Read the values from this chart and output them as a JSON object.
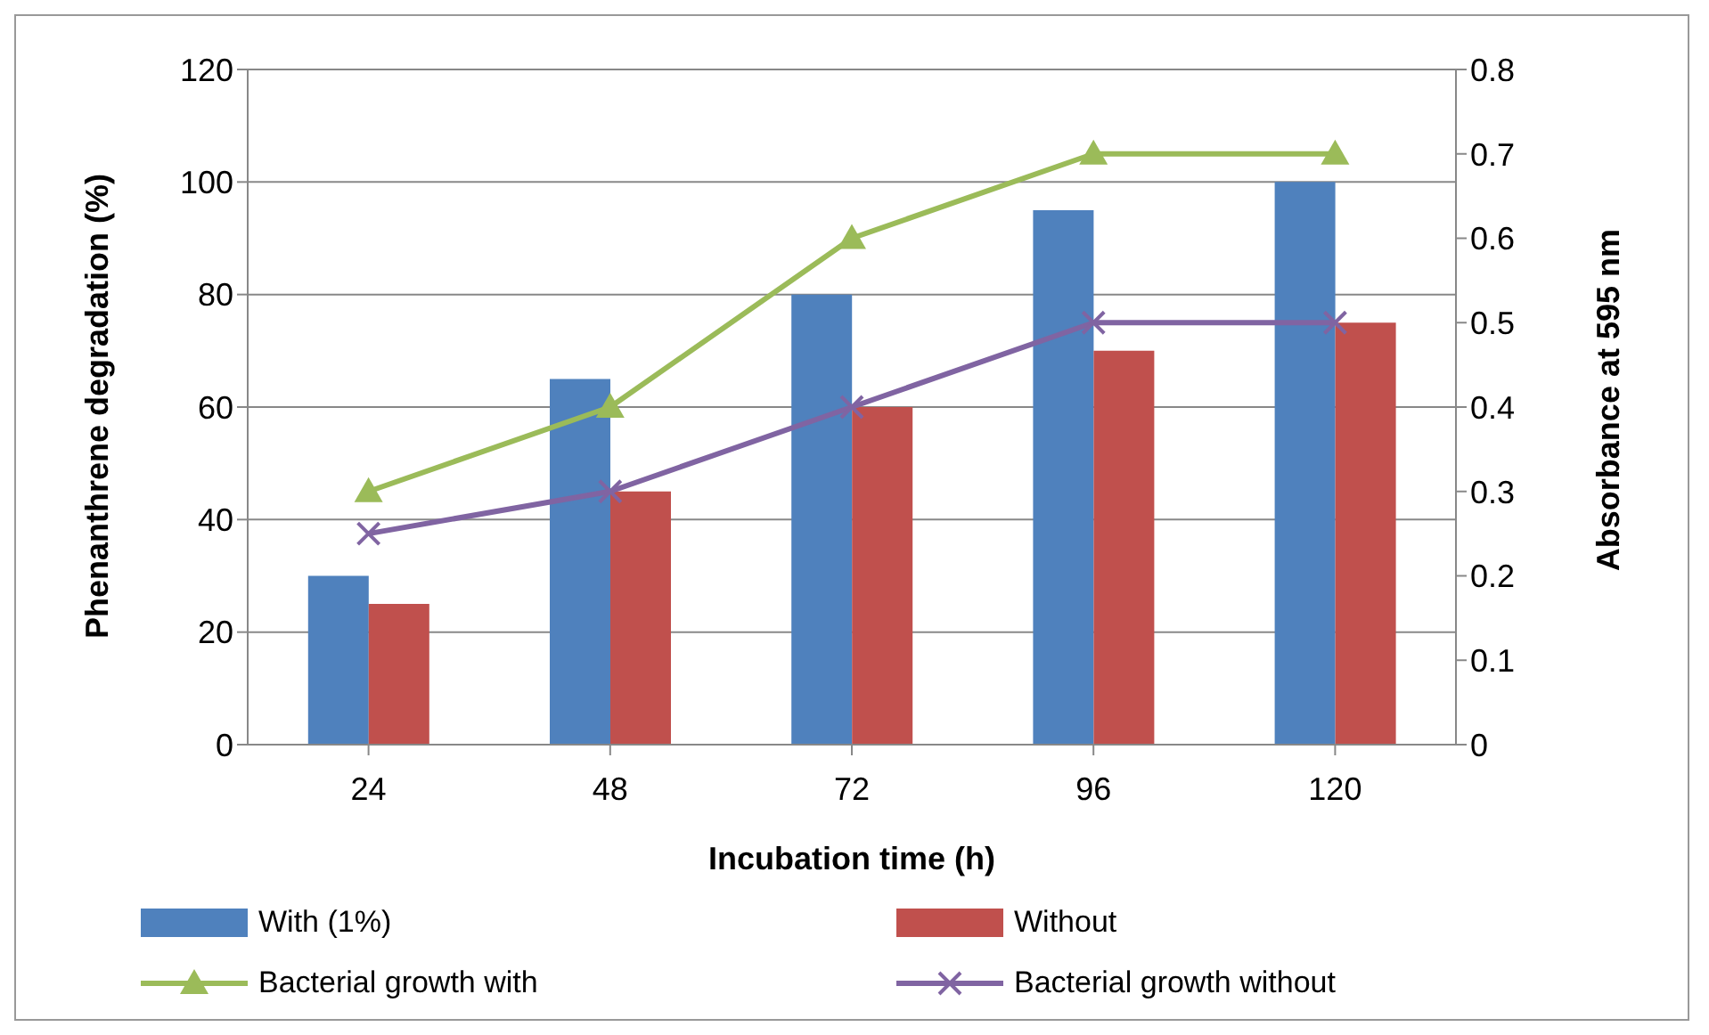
{
  "chart_data": {
    "type": "bar",
    "xlabel": "Incubation time (h)",
    "ylabel": "Phenanthrene degradation (%)",
    "y2label": "Absorbance at 595 nm",
    "categories": [
      "24",
      "48",
      "72",
      "96",
      "120"
    ],
    "series": [
      {
        "name": "With (1%)",
        "color": "#4f81bd",
        "values": [
          30,
          65,
          80,
          95,
          100
        ]
      },
      {
        "name": "Without",
        "color": "#c0504d",
        "values": [
          25,
          45,
          60,
          70,
          75
        ]
      },
      {
        "name": "Bacterial growth with",
        "type": "line",
        "axis": "y2",
        "marker": "triangle",
        "color": "#9bbb59",
        "values": [
          0.3,
          0.4,
          0.6,
          0.7,
          0.7
        ]
      },
      {
        "name": "Bacterial growth without",
        "type": "line",
        "axis": "y2",
        "marker": "cross",
        "color": "#8064a2",
        "values": [
          0.25,
          0.3,
          0.4,
          0.5,
          0.5
        ]
      }
    ],
    "ylim": [
      0,
      120
    ],
    "yticks": [
      0,
      20,
      40,
      60,
      80,
      100,
      120
    ],
    "y2lim": [
      0,
      0.8
    ],
    "y2ticks": [
      0,
      0.1,
      0.2,
      0.3,
      0.4,
      0.5,
      0.6,
      0.7,
      0.8
    ],
    "grid": "y",
    "legend": "bottom"
  }
}
